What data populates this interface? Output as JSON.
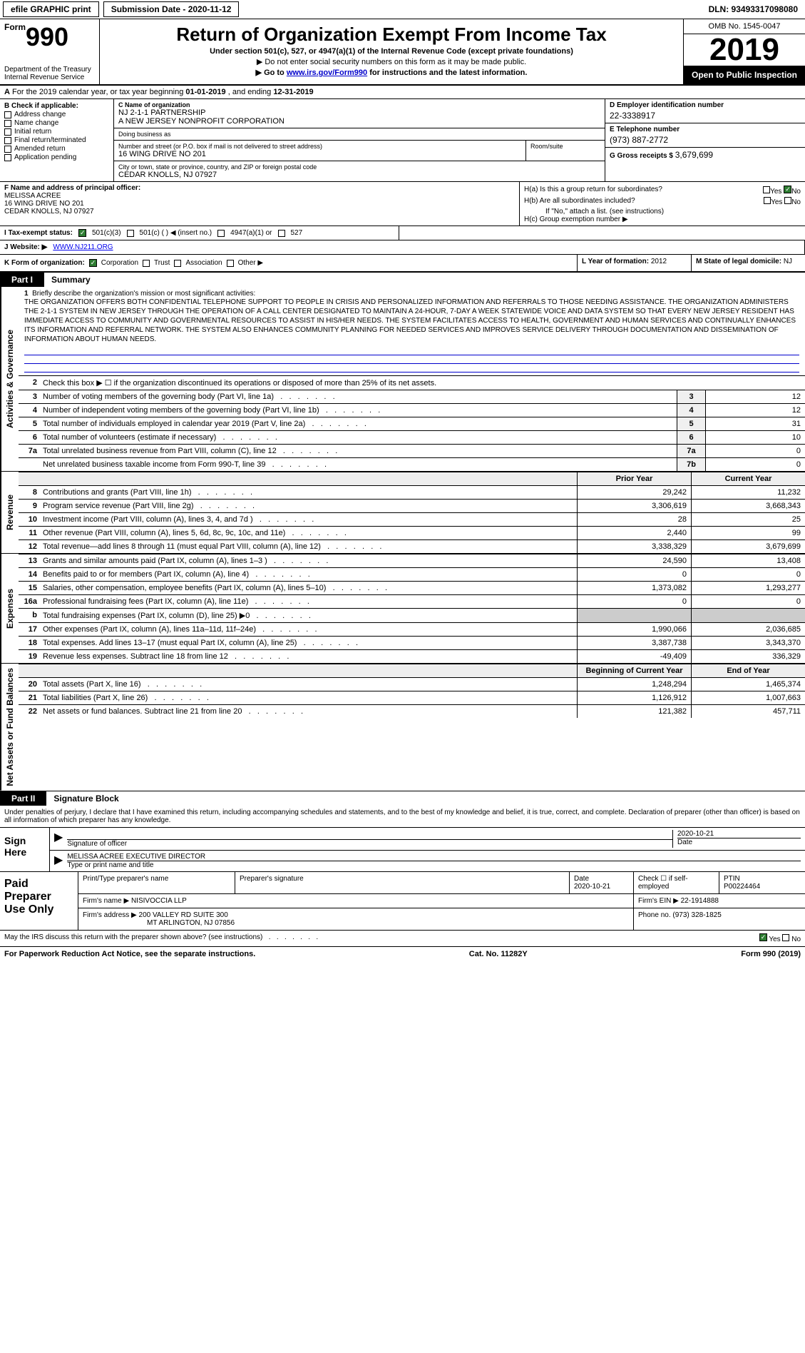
{
  "topbar": {
    "efile": "efile GRAPHIC print",
    "submission_label": "Submission Date - 2020-11-12",
    "dln": "DLN: 93493317098080"
  },
  "header": {
    "form_word": "Form",
    "form_num": "990",
    "dept": "Department of the Treasury\nInternal Revenue Service",
    "title": "Return of Organization Exempt From Income Tax",
    "sub": "Under section 501(c), 527, or 4947(a)(1) of the Internal Revenue Code (except private foundations)",
    "note": "▶ Do not enter social security numbers on this form as it may be made public.",
    "go_prefix": "▶ Go to ",
    "go_link": "www.irs.gov/Form990",
    "go_suffix": " for instructions and the latest information.",
    "omb": "OMB No. 1545-0047",
    "year": "2019",
    "open": "Open to Public Inspection"
  },
  "period": {
    "text_a": "For the 2019 calendar year, or tax year beginning ",
    "begin": "01-01-2019",
    "text_b": " , and ending ",
    "end": "12-31-2019"
  },
  "b": {
    "label": "B Check if applicable:",
    "opts": [
      "Address change",
      "Name change",
      "Initial return",
      "Final return/terminated",
      "Amended return",
      "Application pending"
    ]
  },
  "c": {
    "name_label": "C Name of organization",
    "name1": "NJ 2-1-1 PARTNERSHIP",
    "name2": "A NEW JERSEY NONPROFIT CORPORATION",
    "dba_label": "Doing business as",
    "dba": "",
    "street_label": "Number and street (or P.O. box if mail is not delivered to street address)",
    "street": "16 WING DRIVE NO 201",
    "room_label": "Room/suite",
    "room": "",
    "city_label": "City or town, state or province, country, and ZIP or foreign postal code",
    "city": "CEDAR KNOLLS, NJ  07927"
  },
  "d": {
    "label": "D Employer identification number",
    "val": "22-3338917"
  },
  "e": {
    "label": "E Telephone number",
    "val": "(973) 887-2772"
  },
  "g": {
    "label": "G Gross receipts $",
    "val": "3,679,699"
  },
  "f": {
    "label": "F Name and address of principal officer:",
    "name": "MELISSA ACREE",
    "street": "16 WING DRIVE NO 201",
    "city": "CEDAR KNOLLS, NJ  07927"
  },
  "h": {
    "a": "H(a)  Is this a group return for subordinates?",
    "a_ans": "No",
    "b": "H(b)  Are all subordinates included?",
    "b_note": "If \"No,\" attach a list. (see instructions)",
    "c": "H(c)  Group exemption number ▶"
  },
  "i": {
    "label": "I  Tax-exempt status:",
    "opt1": "501(c)(3)",
    "opt2": "501(c) (  ) ◀ (insert no.)",
    "opt3": "4947(a)(1) or",
    "opt4": "527"
  },
  "j": {
    "label": "J  Website: ▶",
    "val": "WWW.NJ211.ORG"
  },
  "k": {
    "label": "K Form of organization:",
    "opts": [
      "Corporation",
      "Trust",
      "Association",
      "Other ▶"
    ]
  },
  "l": {
    "label": "L Year of formation:",
    "val": "2012"
  },
  "m": {
    "label": "M State of legal domicile:",
    "val": "NJ"
  },
  "part1": {
    "label": "Part I",
    "title": "Summary",
    "side_gov": "Activities & Governance",
    "side_rev": "Revenue",
    "side_exp": "Expenses",
    "side_net": "Net Assets or Fund Balances",
    "line1_label": "Briefly describe the organization's mission or most significant activities:",
    "mission": "THE ORGANIZATION OFFERS BOTH CONFIDENTIAL TELEPHONE SUPPORT TO PEOPLE IN CRISIS AND PERSONALIZED INFORMATION AND REFERRALS TO THOSE NEEDING ASSISTANCE. THE ORGANIZATION ADMINISTERS THE 2-1-1 SYSTEM IN NEW JERSEY THROUGH THE OPERATION OF A CALL CENTER DESIGNATED TO MAINTAIN A 24-HOUR, 7-DAY A WEEK STATEWIDE VOICE AND DATA SYSTEM SO THAT EVERY NEW JERSEY RESIDENT HAS IMMEDIATE ACCESS TO COMMUNITY AND GOVERNMENTAL RESOURCES TO ASSIST IN HIS/HER NEEDS. THE SYSTEM FACILITATES ACCESS TO HEALTH, GOVERNMENT AND HUMAN SERVICES AND CONTINUALLY ENHANCES ITS INFORMATION AND REFERRAL NETWORK. THE SYSTEM ALSO ENHANCES COMMUNITY PLANNING FOR NEEDED SERVICES AND IMPROVES SERVICE DELIVERY THROUGH DOCUMENTATION AND DISSEMINATION OF INFORMATION ABOUT HUMAN NEEDS.",
    "line2": "Check this box ▶ ☐ if the organization discontinued its operations or disposed of more than 25% of its net assets.",
    "rows_single": [
      {
        "n": "3",
        "d": "Number of voting members of the governing body (Part VI, line 1a)",
        "box": "3",
        "v": "12"
      },
      {
        "n": "4",
        "d": "Number of independent voting members of the governing body (Part VI, line 1b)",
        "box": "4",
        "v": "12"
      },
      {
        "n": "5",
        "d": "Total number of individuals employed in calendar year 2019 (Part V, line 2a)",
        "box": "5",
        "v": "31"
      },
      {
        "n": "6",
        "d": "Total number of volunteers (estimate if necessary)",
        "box": "6",
        "v": "10"
      },
      {
        "n": "7a",
        "d": "Total unrelated business revenue from Part VIII, column (C), line 12",
        "box": "7a",
        "v": "0"
      },
      {
        "n": "",
        "d": "Net unrelated business taxable income from Form 990-T, line 39",
        "box": "7b",
        "v": "0"
      }
    ],
    "hdr_prior": "Prior Year",
    "hdr_current": "Current Year",
    "rev_rows": [
      {
        "n": "8",
        "d": "Contributions and grants (Part VIII, line 1h)",
        "p": "29,242",
        "c": "11,232"
      },
      {
        "n": "9",
        "d": "Program service revenue (Part VIII, line 2g)",
        "p": "3,306,619",
        "c": "3,668,343"
      },
      {
        "n": "10",
        "d": "Investment income (Part VIII, column (A), lines 3, 4, and 7d )",
        "p": "28",
        "c": "25"
      },
      {
        "n": "11",
        "d": "Other revenue (Part VIII, column (A), lines 5, 6d, 8c, 9c, 10c, and 11e)",
        "p": "2,440",
        "c": "99"
      },
      {
        "n": "12",
        "d": "Total revenue—add lines 8 through 11 (must equal Part VIII, column (A), line 12)",
        "p": "3,338,329",
        "c": "3,679,699"
      }
    ],
    "exp_rows": [
      {
        "n": "13",
        "d": "Grants and similar amounts paid (Part IX, column (A), lines 1–3 )",
        "p": "24,590",
        "c": "13,408"
      },
      {
        "n": "14",
        "d": "Benefits paid to or for members (Part IX, column (A), line 4)",
        "p": "0",
        "c": "0"
      },
      {
        "n": "15",
        "d": "Salaries, other compensation, employee benefits (Part IX, column (A), lines 5–10)",
        "p": "1,373,082",
        "c": "1,293,277"
      },
      {
        "n": "16a",
        "d": "Professional fundraising fees (Part IX, column (A), line 11e)",
        "p": "0",
        "c": "0"
      },
      {
        "n": "b",
        "d": "Total fundraising expenses (Part IX, column (D), line 25) ▶0",
        "p": "",
        "c": "",
        "shaded": true
      },
      {
        "n": "17",
        "d": "Other expenses (Part IX, column (A), lines 11a–11d, 11f–24e)",
        "p": "1,990,066",
        "c": "2,036,685"
      },
      {
        "n": "18",
        "d": "Total expenses. Add lines 13–17 (must equal Part IX, column (A), line 25)",
        "p": "3,387,738",
        "c": "3,343,370"
      },
      {
        "n": "19",
        "d": "Revenue less expenses. Subtract line 18 from line 12",
        "p": "-49,409",
        "c": "336,329"
      }
    ],
    "hdr_begin": "Beginning of Current Year",
    "hdr_end": "End of Year",
    "net_rows": [
      {
        "n": "20",
        "d": "Total assets (Part X, line 16)",
        "p": "1,248,294",
        "c": "1,465,374"
      },
      {
        "n": "21",
        "d": "Total liabilities (Part X, line 26)",
        "p": "1,126,912",
        "c": "1,007,663"
      },
      {
        "n": "22",
        "d": "Net assets or fund balances. Subtract line 21 from line 20",
        "p": "121,382",
        "c": "457,711"
      }
    ]
  },
  "part2": {
    "label": "Part II",
    "title": "Signature Block",
    "intro": "Under penalties of perjury, I declare that I have examined this return, including accompanying schedules and statements, and to the best of my knowledge and belief, it is true, correct, and complete. Declaration of preparer (other than officer) is based on all information of which preparer has any knowledge.",
    "sign_here": "Sign Here",
    "sig_officer_label": "Signature of officer",
    "sig_date_label": "Date",
    "sig_date": "2020-10-21",
    "sig_name_label": "Type or print name and title",
    "sig_name": "MELISSA ACREE  EXECUTIVE DIRECTOR",
    "paid_label": "Paid Preparer Use Only",
    "prep_name_label": "Print/Type preparer's name",
    "prep_name": "",
    "prep_sig_label": "Preparer's signature",
    "prep_date_label": "Date",
    "prep_date": "2020-10-21",
    "self_emp_label": "Check ☐ if self-employed",
    "ptin_label": "PTIN",
    "ptin": "P00224464",
    "firm_name_label": "Firm's name    ▶",
    "firm_name": "NISIVOCCIA LLP",
    "firm_ein_label": "Firm's EIN ▶",
    "firm_ein": "22-1914888",
    "firm_addr_label": "Firm's address ▶",
    "firm_addr1": "200 VALLEY RD SUITE 300",
    "firm_addr2": "MT ARLINGTON, NJ  07856",
    "phone_label": "Phone no.",
    "phone": "(973) 328-1825"
  },
  "footer": {
    "discuss": "May the IRS discuss this return with the preparer shown above? (see instructions)",
    "discuss_ans": "Yes",
    "paperwork": "For Paperwork Reduction Act Notice, see the separate instructions.",
    "cat": "Cat. No. 11282Y",
    "form": "Form 990 (2019)"
  }
}
